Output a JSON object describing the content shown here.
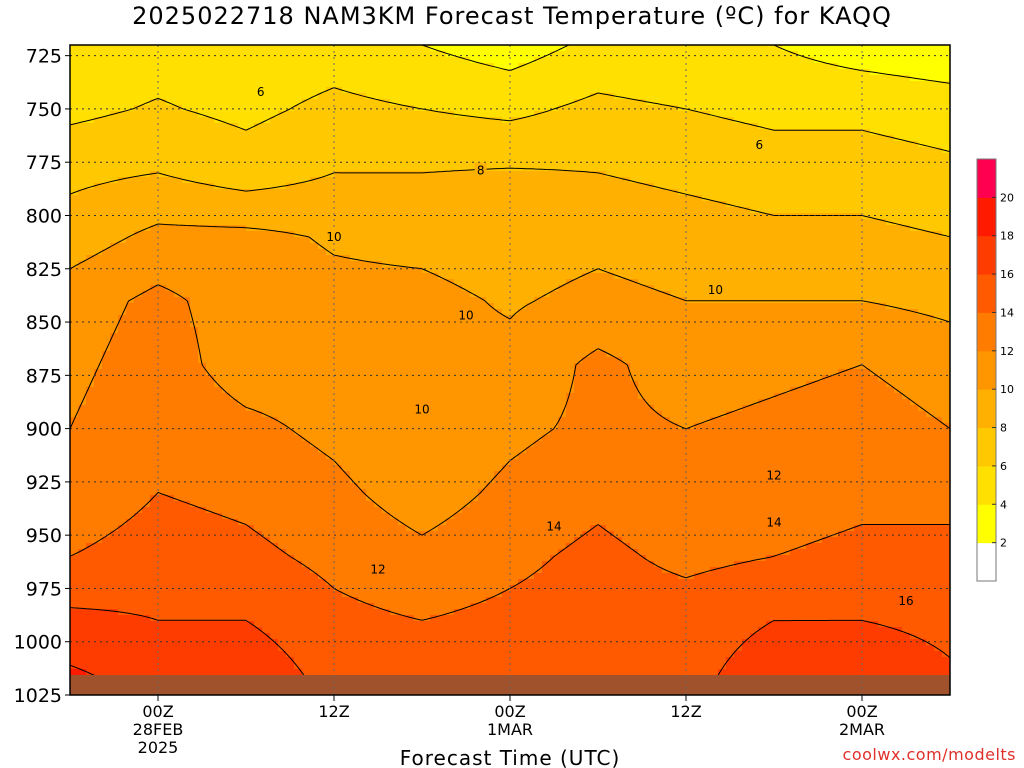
{
  "chart_data": {
    "type": "heatmap",
    "title": "2025022718 NAM3KM Forecast Temperature (ºC) for KAQQ",
    "xlabel": "Forecast Time (UTC)",
    "ylabel": "",
    "y_axis": {
      "ticks": [
        725,
        750,
        775,
        800,
        825,
        850,
        875,
        900,
        925,
        950,
        975,
        1000,
        1025
      ],
      "range": [
        720,
        1025
      ],
      "inverted": true,
      "grid": "dotted"
    },
    "x_axis": {
      "ticks": [
        {
          "hours": 6,
          "label": "00Z",
          "date": "28FEB",
          "year": "2025"
        },
        {
          "hours": 18,
          "label": "12Z",
          "date": "",
          "year": ""
        },
        {
          "hours": 30,
          "label": "00Z",
          "date": "1MAR",
          "year": ""
        },
        {
          "hours": 42,
          "label": "12Z",
          "date": "",
          "year": ""
        },
        {
          "hours": 54,
          "label": "00Z",
          "date": "2MAR",
          "year": ""
        }
      ],
      "range": [
        0,
        60
      ],
      "grid": "dotted"
    },
    "colorbar": {
      "levels": [
        2,
        4,
        6,
        8,
        10,
        12,
        14,
        16,
        18,
        20,
        22
      ],
      "labels": [
        2,
        4,
        6,
        8,
        10,
        12,
        14,
        16,
        18,
        20
      ],
      "colors": [
        "#ffffff",
        "#ffff00",
        "#ffe000",
        "#ffc800",
        "#ffb000",
        "#ff9600",
        "#ff7c00",
        "#ff5a00",
        "#ff3c00",
        "#ff1a00",
        "#ff0050"
      ]
    },
    "contour_labels": [
      {
        "text": "6",
        "x": 13,
        "p": 742
      },
      {
        "text": "6",
        "x": 47,
        "p": 767
      },
      {
        "text": "8",
        "x": 28,
        "p": 779
      },
      {
        "text": "10",
        "x": 18,
        "p": 810
      },
      {
        "text": "10",
        "x": 27,
        "p": 847
      },
      {
        "text": "10",
        "x": 24,
        "p": 891
      },
      {
        "text": "10",
        "x": 44,
        "p": 835
      },
      {
        "text": "12",
        "x": 21,
        "p": 966
      },
      {
        "text": "12",
        "x": 48,
        "p": 922
      },
      {
        "text": "14",
        "x": 33,
        "p": 946
      },
      {
        "text": "14",
        "x": 48,
        "p": 944
      },
      {
        "text": "16",
        "x": 57,
        "p": 981
      }
    ],
    "temperature_field": {
      "x_hours": [
        0,
        6,
        12,
        18,
        24,
        30,
        36,
        42,
        48,
        54,
        60
      ],
      "pressure": [
        720,
        750,
        780,
        810,
        840,
        870,
        900,
        930,
        960,
        990,
        1025
      ],
      "values": [
        [
          4.5,
          5.0,
          4.5,
          5.0,
          4.0,
          3.0,
          4.5,
          4.0,
          4.0,
          3.0,
          2.5
        ],
        [
          5.5,
          6.2,
          5.5,
          6.5,
          6.0,
          5.5,
          6.5,
          6.0,
          5.5,
          5.5,
          5.0
        ],
        [
          7.5,
          8.0,
          7.0,
          8.0,
          8.0,
          8.2,
          8.0,
          7.5,
          7.0,
          7.0,
          6.5
        ],
        [
          9.0,
          10.5,
          10.5,
          9.8,
          9.5,
          9.0,
          9.5,
          9.0,
          8.5,
          8.5,
          8.0
        ],
        [
          11.0,
          12.5,
          11.0,
          10.5,
          10.5,
          9.8,
          10.5,
          10.0,
          10.0,
          10.0,
          9.5
        ],
        [
          11.5,
          13.0,
          11.0,
          11.0,
          10.5,
          10.5,
          12.5,
          11.0,
          11.5,
          12.0,
          11.0
        ],
        [
          12.0,
          13.5,
          12.5,
          11.5,
          10.0,
          11.5,
          12.5,
          12.0,
          12.5,
          13.0,
          12.0
        ],
        [
          12.5,
          14.0,
          13.5,
          12.5,
          11.0,
          12.5,
          13.5,
          12.5,
          13.0,
          13.5,
          13.0
        ],
        [
          14.0,
          15.0,
          14.5,
          13.5,
          12.5,
          13.5,
          14.5,
          13.5,
          14.0,
          14.5,
          15.0
        ],
        [
          16.5,
          16.0,
          16.0,
          14.5,
          14.0,
          14.5,
          15.0,
          15.0,
          16.0,
          16.0,
          15.5
        ],
        [
          19.0,
          17.5,
          18.0,
          15.5,
          16.0,
          15.5,
          15.5,
          15.5,
          17.5,
          18.0,
          16.5
        ]
      ]
    }
  },
  "credit": "coolwx.com/modelts"
}
